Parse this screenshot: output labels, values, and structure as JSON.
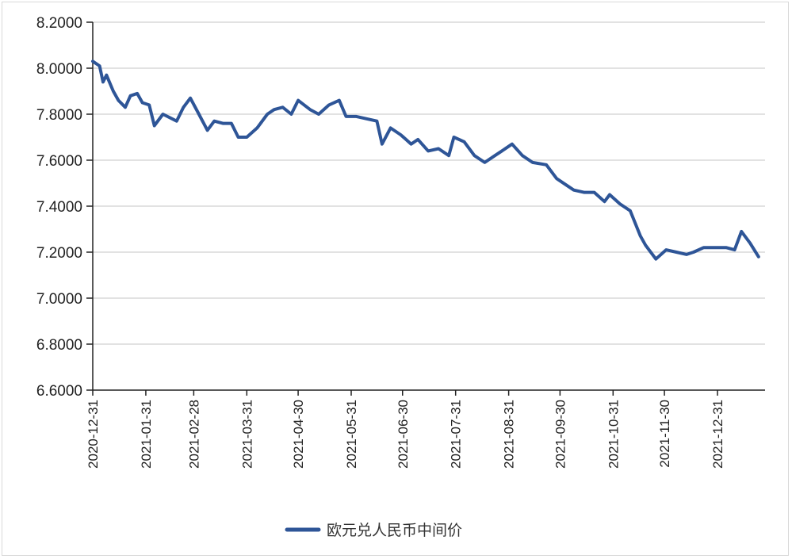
{
  "chart_data": {
    "type": "line",
    "title": "",
    "xlabel": "",
    "ylabel": "",
    "ylim": [
      6.6,
      8.2
    ],
    "grid": true,
    "legend_position": "bottom",
    "y_ticks": [
      "8.2000",
      "8.0000",
      "7.8000",
      "7.6000",
      "7.4000",
      "7.2000",
      "7.0000",
      "6.8000",
      "6.6000"
    ],
    "x_ticks": [
      "2020-12-31",
      "2021-01-31",
      "2021-02-28",
      "2021-03-31",
      "2021-04-30",
      "2021-05-31",
      "2021-06-30",
      "2021-07-31",
      "2021-08-31",
      "2021-09-30",
      "2021-10-31",
      "2021-11-30",
      "2021-12-31"
    ],
    "series": [
      {
        "name": "欧元兑人民币中间价",
        "color": "#2e5597",
        "x": [
          "2020-12-31",
          "2021-01-04",
          "2021-01-06",
          "2021-01-08",
          "2021-01-12",
          "2021-01-15",
          "2021-01-19",
          "2021-01-22",
          "2021-01-26",
          "2021-01-29",
          "2021-02-02",
          "2021-02-05",
          "2021-02-10",
          "2021-02-18",
          "2021-02-22",
          "2021-02-26",
          "2021-03-03",
          "2021-03-08",
          "2021-03-12",
          "2021-03-17",
          "2021-03-22",
          "2021-03-26",
          "2021-03-31",
          "2021-04-06",
          "2021-04-12",
          "2021-04-16",
          "2021-04-21",
          "2021-04-26",
          "2021-04-30",
          "2021-05-07",
          "2021-05-12",
          "2021-05-18",
          "2021-05-24",
          "2021-05-28",
          "2021-06-03",
          "2021-06-09",
          "2021-06-15",
          "2021-06-18",
          "2021-06-23",
          "2021-06-29",
          "2021-07-05",
          "2021-07-09",
          "2021-07-15",
          "2021-07-21",
          "2021-07-27",
          "2021-07-30",
          "2021-08-05",
          "2021-08-11",
          "2021-08-17",
          "2021-08-23",
          "2021-08-27",
          "2021-09-02",
          "2021-09-08",
          "2021-09-14",
          "2021-09-22",
          "2021-09-28",
          "2021-10-08",
          "2021-10-14",
          "2021-10-20",
          "2021-10-26",
          "2021-10-29",
          "2021-11-04",
          "2021-11-10",
          "2021-11-16",
          "2021-11-19",
          "2021-11-25",
          "2021-12-01",
          "2021-12-07",
          "2021-12-13",
          "2021-12-17",
          "2021-12-23",
          "2021-12-29",
          "2022-01-05",
          "2022-01-10",
          "2022-01-14",
          "2022-01-19",
          "2022-01-24"
        ],
        "values": [
          8.03,
          8.01,
          7.94,
          7.97,
          7.9,
          7.86,
          7.83,
          7.88,
          7.89,
          7.85,
          7.84,
          7.75,
          7.8,
          7.77,
          7.83,
          7.87,
          7.8,
          7.73,
          7.77,
          7.76,
          7.76,
          7.7,
          7.7,
          7.74,
          7.8,
          7.82,
          7.83,
          7.8,
          7.86,
          7.82,
          7.8,
          7.84,
          7.86,
          7.79,
          7.79,
          7.78,
          7.77,
          7.67,
          7.74,
          7.71,
          7.67,
          7.69,
          7.64,
          7.65,
          7.62,
          7.7,
          7.68,
          7.62,
          7.59,
          7.62,
          7.64,
          7.67,
          7.62,
          7.59,
          7.58,
          7.52,
          7.47,
          7.46,
          7.46,
          7.42,
          7.45,
          7.41,
          7.38,
          7.27,
          7.23,
          7.17,
          7.21,
          7.2,
          7.19,
          7.2,
          7.22,
          7.22,
          7.22,
          7.21,
          7.29,
          7.24,
          7.18
        ]
      }
    ]
  },
  "legend": {
    "items": [
      {
        "label": "欧元兑人民币中间价",
        "color": "#2e5597"
      }
    ]
  }
}
